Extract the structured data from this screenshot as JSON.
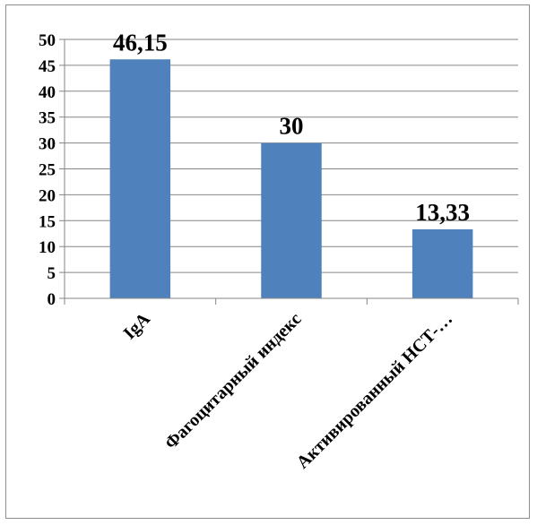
{
  "chart_data": {
    "type": "bar",
    "categories": [
      "IgA",
      "Фагоцитарный индекс",
      "Активированный НСТ-…"
    ],
    "values": [
      46.15,
      30,
      13.33
    ],
    "data_labels": [
      "46,15",
      "30",
      "13,33"
    ],
    "yticks": [
      "0",
      "5",
      "10",
      "15",
      "20",
      "25",
      "30",
      "35",
      "40",
      "45",
      "50"
    ],
    "ylim": [
      0,
      50
    ],
    "grid": true,
    "legend": "none",
    "bar_color": "#4f81bd",
    "title": "",
    "xlabel": "",
    "ylabel": ""
  }
}
